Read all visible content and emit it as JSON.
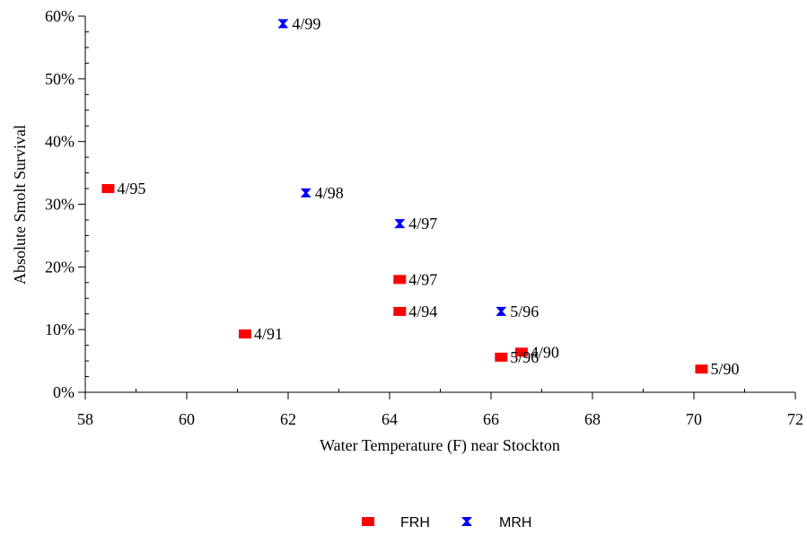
{
  "chart_data": {
    "type": "scatter",
    "xlabel": "Water Temperature (F) near Stockton",
    "ylabel": "Absolute Smolt Survival",
    "xlim": [
      58,
      72
    ],
    "ylim": [
      0,
      0.6
    ],
    "x_ticks": [
      58,
      60,
      62,
      64,
      66,
      68,
      70,
      72
    ],
    "x_tick_labels": [
      "58",
      "60",
      "62",
      "64",
      "66",
      "68",
      "70",
      "72"
    ],
    "y_ticks": [
      0,
      0.1,
      0.2,
      0.3,
      0.4,
      0.5,
      0.6
    ],
    "y_tick_labels": [
      "0%",
      "10%",
      "20%",
      "30%",
      "40%",
      "50%",
      "60%"
    ],
    "grid": false,
    "legend_position": "bottom-center",
    "series": [
      {
        "name": "FRH",
        "color": "#ff0000",
        "marker": "square",
        "points": [
          {
            "x": 58.45,
            "y": 0.325,
            "label": "4/95"
          },
          {
            "x": 61.15,
            "y": 0.093,
            "label": "4/91"
          },
          {
            "x": 64.2,
            "y": 0.18,
            "label": "4/97"
          },
          {
            "x": 64.2,
            "y": 0.129,
            "label": "4/94"
          },
          {
            "x": 66.2,
            "y": 0.056,
            "label": "5/96"
          },
          {
            "x": 66.6,
            "y": 0.064,
            "label": "4/90"
          },
          {
            "x": 70.15,
            "y": 0.037,
            "label": "5/90"
          }
        ]
      },
      {
        "name": "MRH",
        "color": "#0000ff",
        "marker": "bowtie",
        "points": [
          {
            "x": 61.9,
            "y": 0.588,
            "label": "4/99"
          },
          {
            "x": 62.35,
            "y": 0.318,
            "label": "4/98"
          },
          {
            "x": 64.2,
            "y": 0.269,
            "label": "4/97"
          },
          {
            "x": 66.2,
            "y": 0.129,
            "label": "5/96"
          }
        ]
      }
    ]
  }
}
